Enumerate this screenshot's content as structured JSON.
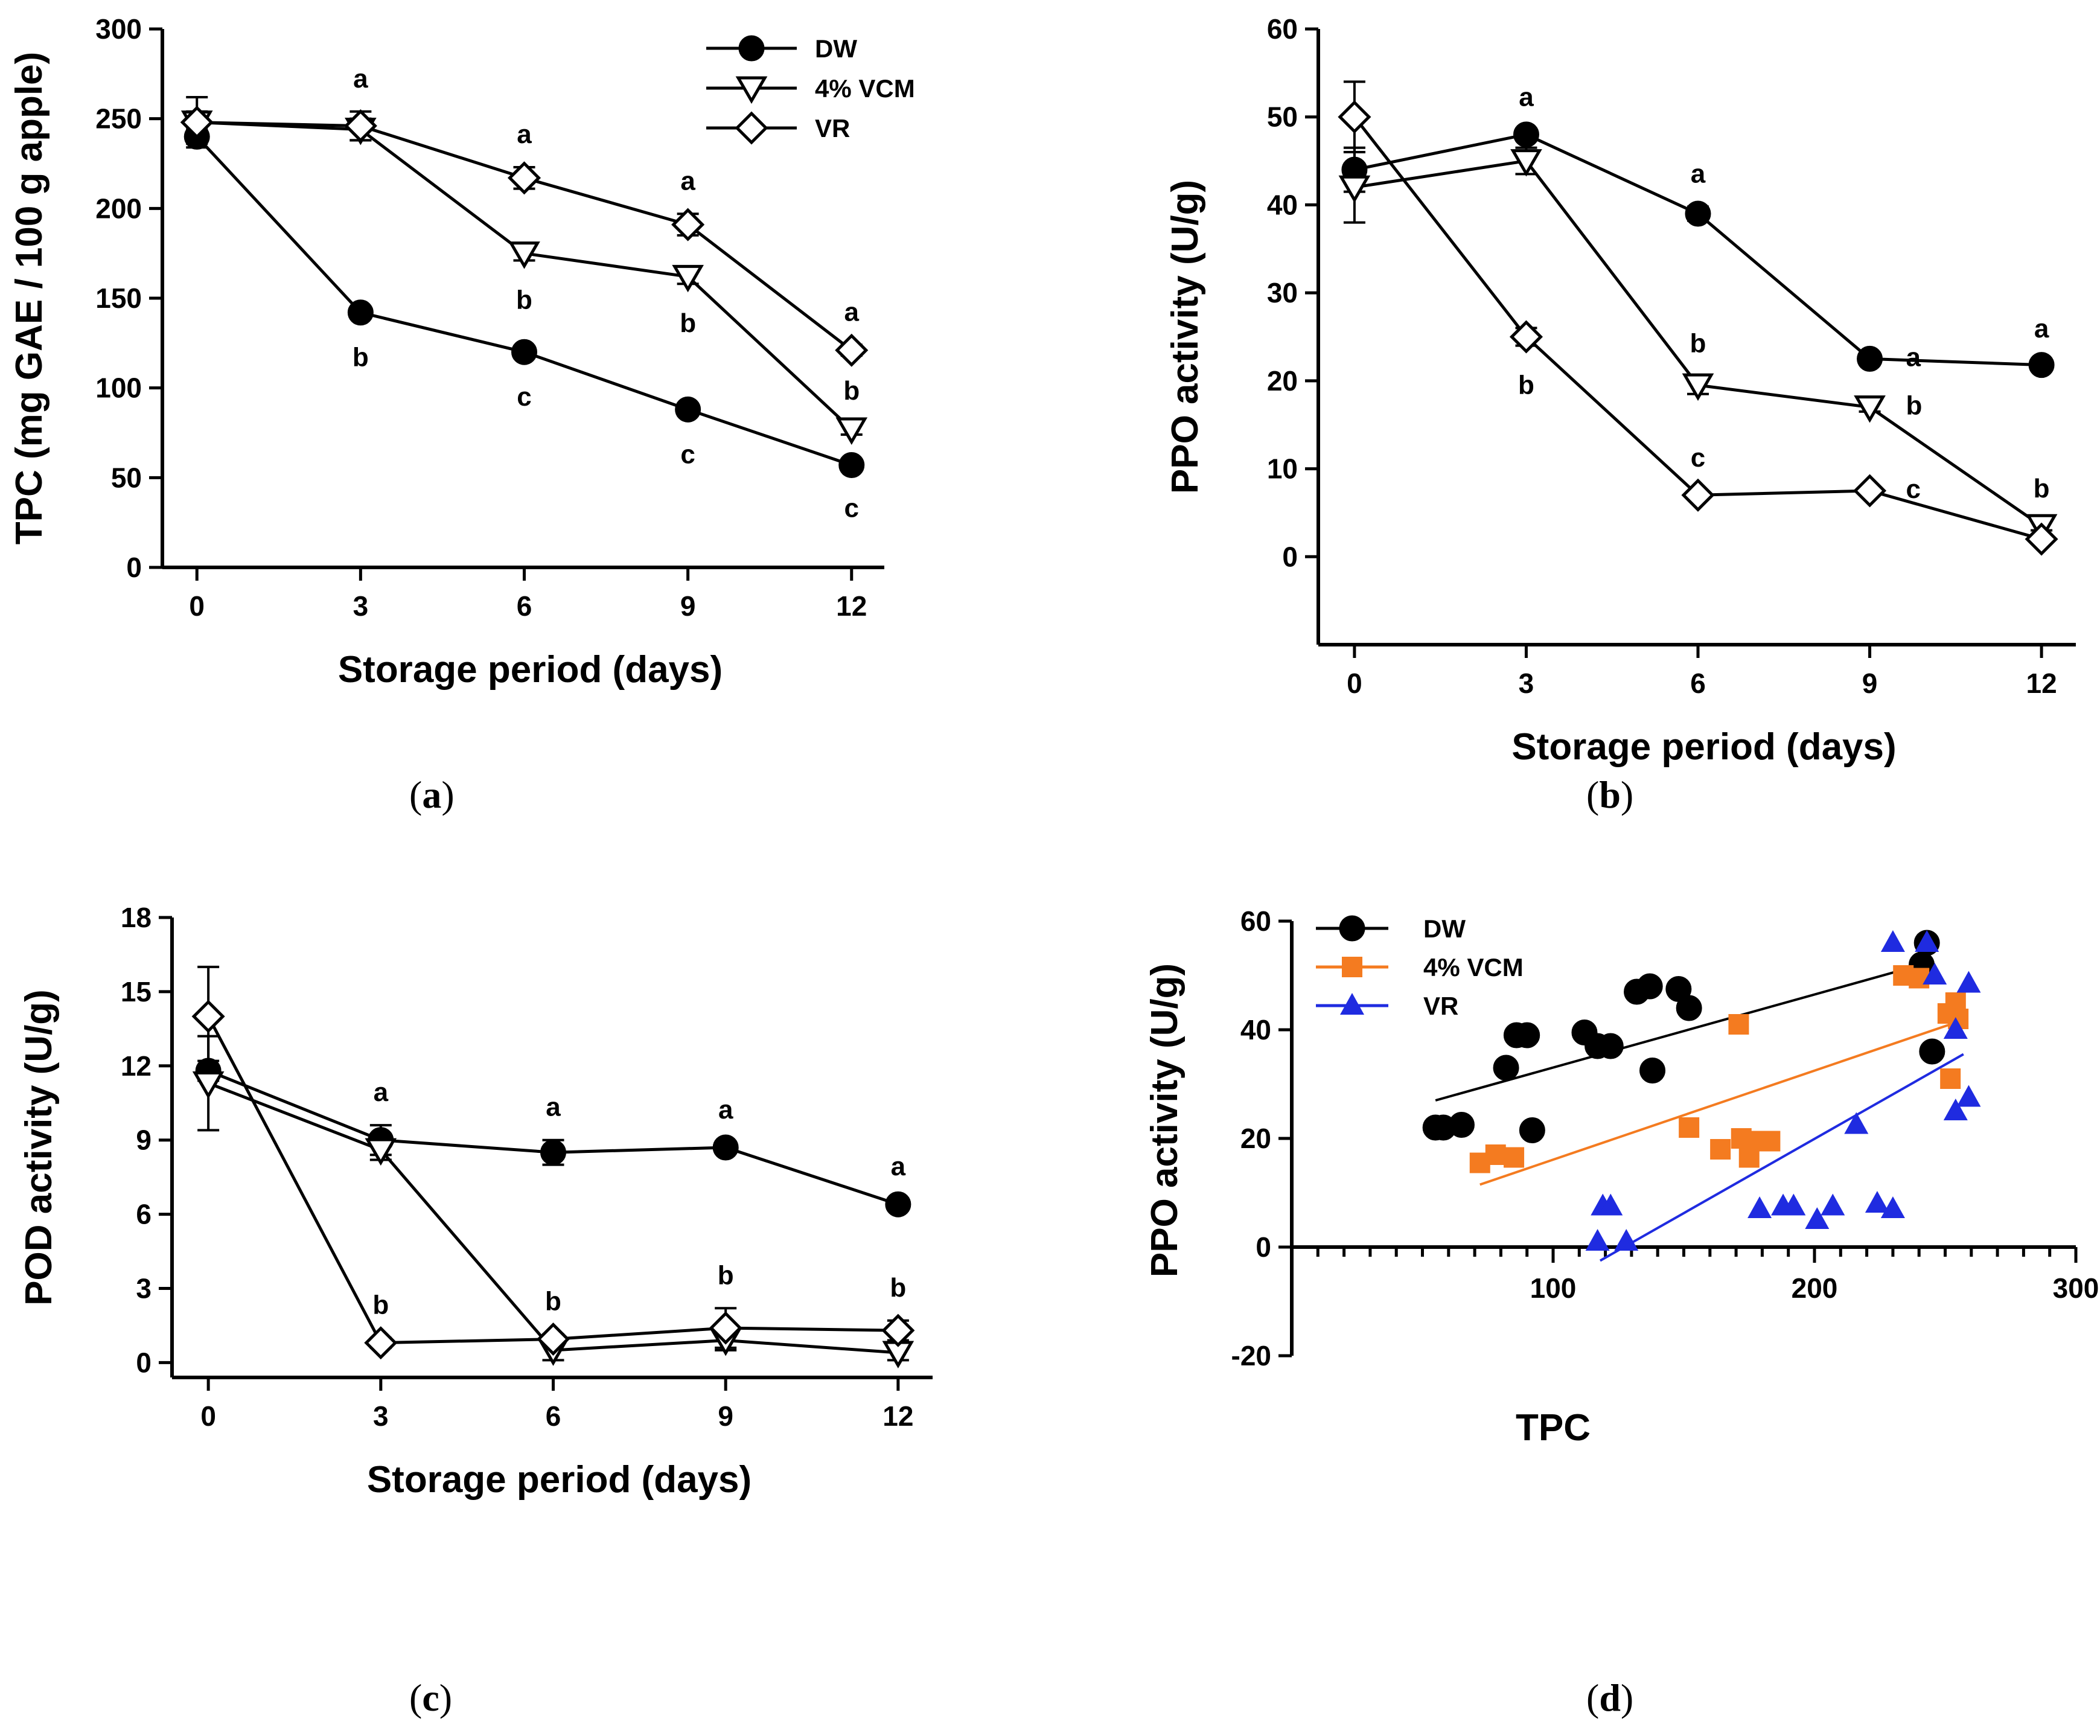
{
  "chart_data": [
    {
      "id": "a",
      "type": "line",
      "caption": "a",
      "xlabel": "Storage period (days)",
      "ylabel": "TPC (mg GAE / 100 g apple)",
      "x": [
        0,
        3,
        6,
        9,
        12
      ],
      "xticks": [
        0,
        3,
        6,
        9,
        12
      ],
      "xlim": [
        -0.6,
        12.6
      ],
      "ylim": [
        0,
        300
      ],
      "yticks": [
        0,
        50,
        100,
        150,
        200,
        250,
        300
      ],
      "legend": "top-right",
      "series": [
        {
          "name": "DW",
          "marker": "circle",
          "values": [
            240,
            142,
            120,
            88,
            57
          ],
          "errors": [
            4,
            3,
            3,
            3,
            2
          ],
          "letters": [
            "",
            "b",
            "c",
            "c",
            "c"
          ],
          "letter_pos": [
            "",
            "below",
            "below",
            "below",
            "below"
          ]
        },
        {
          "name": "4% VCM",
          "marker": "triangle-down",
          "values": [
            248,
            244,
            175,
            162,
            77
          ],
          "errors": [
            6,
            6,
            4,
            4,
            3
          ],
          "letters": [
            "",
            "",
            "b",
            "b",
            "b"
          ],
          "letter_pos": [
            "",
            "",
            "below",
            "below",
            "above"
          ]
        },
        {
          "name": "VR",
          "marker": "diamond",
          "values": [
            248,
            246,
            217,
            191,
            121
          ],
          "errors": [
            14,
            8,
            6,
            6,
            3
          ],
          "letters": [
            "",
            "a",
            "a",
            "a",
            "a"
          ],
          "letter_pos": [
            "",
            "above",
            "above",
            "above",
            "above"
          ]
        }
      ]
    },
    {
      "id": "b",
      "type": "line",
      "caption": "b",
      "xlabel": "Storage period (days)",
      "ylabel": "PPO activity (U/g)",
      "x": [
        0,
        3,
        6,
        9,
        12
      ],
      "xticks": [
        0,
        3,
        6,
        9,
        12
      ],
      "xlim": [
        -0.6,
        12.6
      ],
      "ylim": [
        -10,
        60
      ],
      "yticks": [
        0,
        10,
        20,
        30,
        40,
        50,
        60
      ],
      "series": [
        {
          "name": "DW",
          "marker": "circle",
          "values": [
            44,
            48,
            39,
            22.5,
            21.8
          ],
          "errors": [
            2.5,
            0.5,
            0.8,
            0.5,
            0.4
          ],
          "letters": [
            "",
            "a",
            "a",
            "a",
            "a"
          ],
          "letter_pos": [
            "",
            "above",
            "above",
            "right",
            "above"
          ]
        },
        {
          "name": "4% VCM",
          "marker": "triangle-down",
          "values": [
            42,
            45,
            19.5,
            17,
            3.5
          ],
          "errors": [
            4,
            1.5,
            1,
            0.5,
            0.5
          ],
          "letters": [
            "",
            "",
            "b",
            "b",
            "b"
          ],
          "letter_pos": [
            "",
            "",
            "above",
            "right",
            "above"
          ]
        },
        {
          "name": "VR",
          "marker": "diamond",
          "values": [
            50,
            25,
            7,
            7.5,
            2
          ],
          "errors": [
            4,
            1,
            0.5,
            0.5,
            0.5
          ],
          "letters": [
            "",
            "b",
            "c",
            "c",
            ""
          ],
          "letter_pos": [
            "",
            "below",
            "above",
            "right",
            ""
          ]
        }
      ]
    },
    {
      "id": "c",
      "type": "line",
      "caption": "c",
      "xlabel": "Storage period (days)",
      "ylabel": "POD activity (U/g)",
      "x": [
        0,
        3,
        6,
        9,
        12
      ],
      "xticks": [
        0,
        3,
        6,
        9,
        12
      ],
      "xlim": [
        -0.6,
        12.6
      ],
      "ylim": [
        -0.6,
        18
      ],
      "yticks": [
        0,
        3,
        6,
        9,
        12,
        15,
        18
      ],
      "series": [
        {
          "name": "DW",
          "marker": "circle",
          "values": [
            11.8,
            9.0,
            8.5,
            8.7,
            6.4
          ],
          "errors": [
            0.4,
            0.6,
            0.5,
            0.2,
            0.2
          ],
          "letters": [
            "",
            "a",
            "a",
            "a",
            "a"
          ],
          "letter_pos": [
            "",
            "above",
            "above",
            "above",
            "above"
          ]
        },
        {
          "name": "4% VCM",
          "marker": "triangle-down",
          "values": [
            11.3,
            8.6,
            0.5,
            0.9,
            0.4
          ],
          "errors": [
            1.9,
            0.4,
            0.4,
            0.4,
            0.3
          ],
          "letters": [
            "",
            "",
            "",
            "",
            ""
          ],
          "letter_pos": [
            "",
            "",
            "",
            "",
            ""
          ]
        },
        {
          "name": "VR",
          "marker": "diamond",
          "values": [
            14.0,
            0.8,
            0.95,
            1.4,
            1.3
          ],
          "errors": [
            2.0,
            0.2,
            0.2,
            0.8,
            0.4
          ],
          "letters": [
            "",
            "b",
            "b",
            "b",
            "b"
          ],
          "letter_pos": [
            "",
            "above",
            "above",
            "above",
            "above"
          ]
        }
      ]
    },
    {
      "id": "d",
      "type": "scatter",
      "caption": "d",
      "xlabel": "TPC",
      "ylabel": "PPO activity (U/g)",
      "xlim": [
        0,
        300
      ],
      "xticks": [
        100,
        200,
        300
      ],
      "ylim": [
        -20,
        60
      ],
      "yticks": [
        -20,
        0,
        20,
        40,
        60
      ],
      "legend": "top-left",
      "series": [
        {
          "name": "DW",
          "color": "#000000",
          "marker": "circle",
          "points": [
            [
              55,
              22
            ],
            [
              58,
              22
            ],
            [
              65,
              22.5
            ],
            [
              82,
              33
            ],
            [
              86,
              39
            ],
            [
              90,
              39
            ],
            [
              92,
              21.5
            ],
            [
              112,
              39.5
            ],
            [
              117,
              37
            ],
            [
              122,
              37
            ],
            [
              132,
              47
            ],
            [
              137,
              48
            ],
            [
              138,
              32.5
            ],
            [
              148,
              47.5
            ],
            [
              152,
              44
            ],
            [
              241,
              52
            ],
            [
              243,
              56
            ],
            [
              245,
              36
            ]
          ],
          "fit": [
            [
              55,
              27
            ],
            [
              241,
              52
            ]
          ]
        },
        {
          "name": "4% VCM",
          "color": "#f47b20",
          "marker": "square",
          "points": [
            [
              72,
              15.5
            ],
            [
              78,
              17
            ],
            [
              85,
              16.5
            ],
            [
              152,
              22
            ],
            [
              164,
              18
            ],
            [
              171,
              41
            ],
            [
              172,
              20
            ],
            [
              175,
              16.5
            ],
            [
              178,
              19.5
            ],
            [
              183,
              19.5
            ],
            [
              234,
              50
            ],
            [
              240,
              49.5
            ],
            [
              251,
              43
            ],
            [
              252,
              31
            ],
            [
              254,
              45
            ],
            [
              255,
              42
            ]
          ],
          "fit": [
            [
              72,
              11.5
            ],
            [
              252,
              41
            ]
          ]
        },
        {
          "name": "VR",
          "color": "#1f2be0",
          "marker": "triangle",
          "points": [
            [
              117,
              1
            ],
            [
              119,
              7.5
            ],
            [
              122,
              7.5
            ],
            [
              128,
              1
            ],
            [
              179,
              7
            ],
            [
              188,
              7.5
            ],
            [
              192,
              7.5
            ],
            [
              201,
              5
            ],
            [
              207,
              7.5
            ],
            [
              216,
              22.5
            ],
            [
              224,
              8
            ],
            [
              230,
              7
            ],
            [
              230,
              56
            ],
            [
              243,
              56
            ],
            [
              246,
              50
            ],
            [
              254,
              40
            ],
            [
              254,
              25
            ],
            [
              259,
              27.5
            ],
            [
              259,
              48.5
            ]
          ],
          "fit": [
            [
              118,
              -2.5
            ],
            [
              257,
              35.5
            ]
          ]
        }
      ]
    }
  ]
}
